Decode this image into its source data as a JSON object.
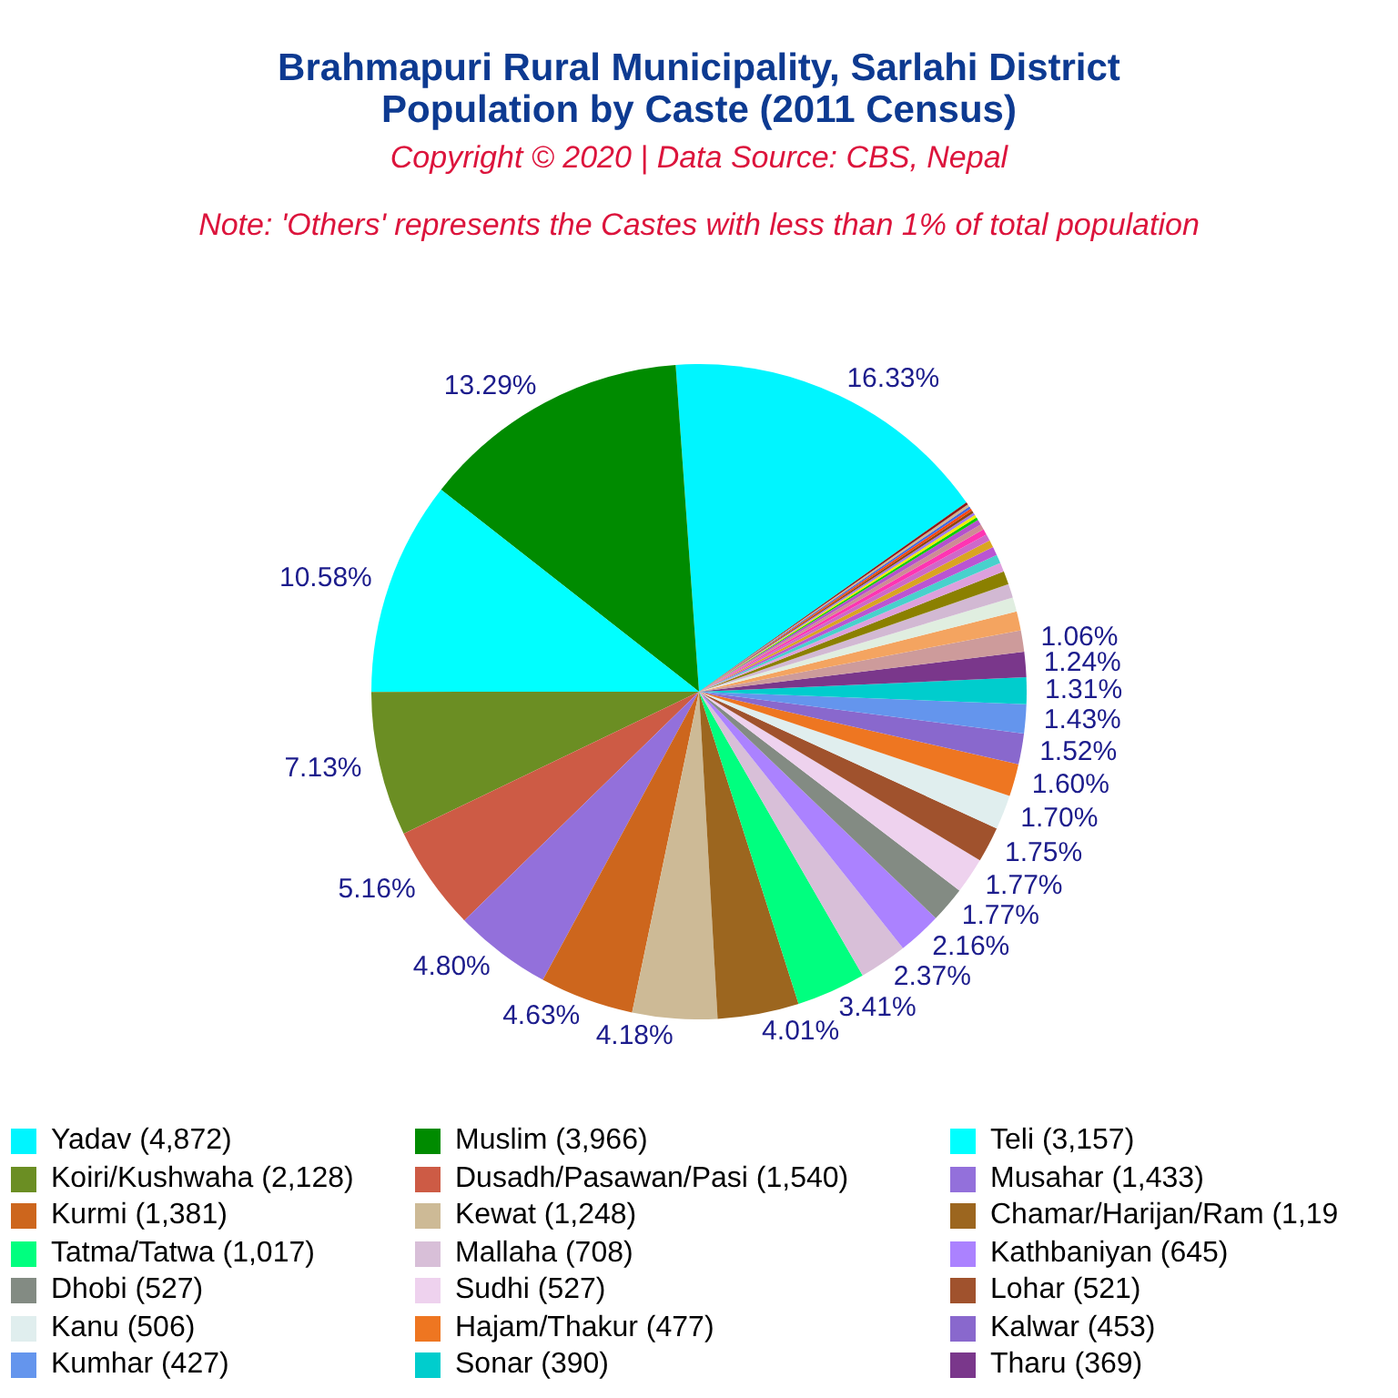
{
  "chart_data": {
    "type": "pie",
    "title": "Brahmapuri Rural Municipality, Sarlahi District\nPopulation by Caste (2011 Census)",
    "subtitle": "Copyright © 2020 | Data Source: CBS, Nepal",
    "annotations": [
      "Note: 'Others' represents the Castes with less than 1% of total population"
    ],
    "categories": [
      "Yadav (4,872)",
      "Muslim (3,966)",
      "Teli (3,157)",
      "Koiri/Kushwaha (2,128)",
      "Dusadh/Pasawan/Pasi (1,540)",
      "Musahar (1,433)",
      "Kurmi (1,381)",
      "Kewat (1,248)",
      "Chamar/Harijan/Ram (1,19",
      "Tatma/Tatwa (1,017)",
      "Mallaha (708)",
      "Kathbaniyan (645)",
      "Dhobi (527)",
      "Sudhi (527)",
      "Lohar (521)",
      "Kanu (506)",
      "Hajam/Thakur (477)",
      "Kalwar (453)",
      "Kumhar (427)",
      "Sonar (390)",
      "Tharu (369)",
      null,
      null,
      null,
      null,
      null,
      null,
      null,
      null,
      null,
      null,
      null,
      null,
      null,
      null,
      null,
      null,
      null,
      null,
      null,
      null,
      null
    ],
    "values": [
      16.33,
      13.29,
      10.58,
      7.13,
      5.16,
      4.8,
      4.63,
      4.18,
      4.01,
      3.41,
      2.37,
      2.16,
      1.77,
      1.77,
      1.75,
      1.7,
      1.6,
      1.52,
      1.43,
      1.31,
      1.24,
      1.06,
      0.94,
      0.7,
      0.68,
      0.66,
      0.44,
      0.43,
      0.42,
      0.36,
      0.33,
      0.29,
      0.27,
      0.26,
      0.14,
      0.14,
      0.13,
      0.13,
      0.12,
      0.12,
      0.12,
      0.12
    ],
    "colors": [
      "#00f5ff",
      "#008b00",
      "#00ffff",
      "#6b8e23",
      "#cd5b45",
      "#9370db",
      "#cd661d",
      "#cdba96",
      "#9c661f",
      "#00ff7f",
      "#d8bfd8",
      "#ab82ff",
      "#838b83",
      "#eed2ee",
      "#a0522d",
      "#e0eeee",
      "#ee7621",
      "#8968cd",
      "#6495ed",
      "#00cdcd",
      "#7a378b",
      "#cd9b9b",
      "#f4a460",
      "#e0eee0",
      "#d2b9d3",
      "#8b8000",
      "#dda0dd",
      "#48d1cc",
      "#ba55d3",
      "#daa520",
      "#cd69c9",
      "#ff34b3",
      "#cd8c95",
      "#b452cd",
      "#00cd00",
      "#eeee00",
      "#9f79ee",
      "#8b4513",
      "#ff4500",
      "#4169e1",
      "#d2b48c",
      "#8b1a1a"
    ],
    "value_labels": [
      "16.33%",
      "13.29%",
      "10.58%",
      "7.13%",
      "5.16%",
      "4.80%",
      "4.63%",
      "4.18%",
      "4.01%",
      "3.41%",
      "2.37%",
      "2.16%",
      "1.77%",
      "1.77%",
      "1.75%",
      "1.70%",
      "1.60%",
      "1.52%",
      "1.43%",
      "1.31%",
      "1.24%",
      "1.06%",
      null,
      null,
      null,
      null,
      null,
      null,
      null,
      null,
      null,
      null,
      null,
      null,
      null,
      null,
      null,
      null,
      null,
      null,
      null,
      null
    ],
    "legend": "bottom"
  }
}
